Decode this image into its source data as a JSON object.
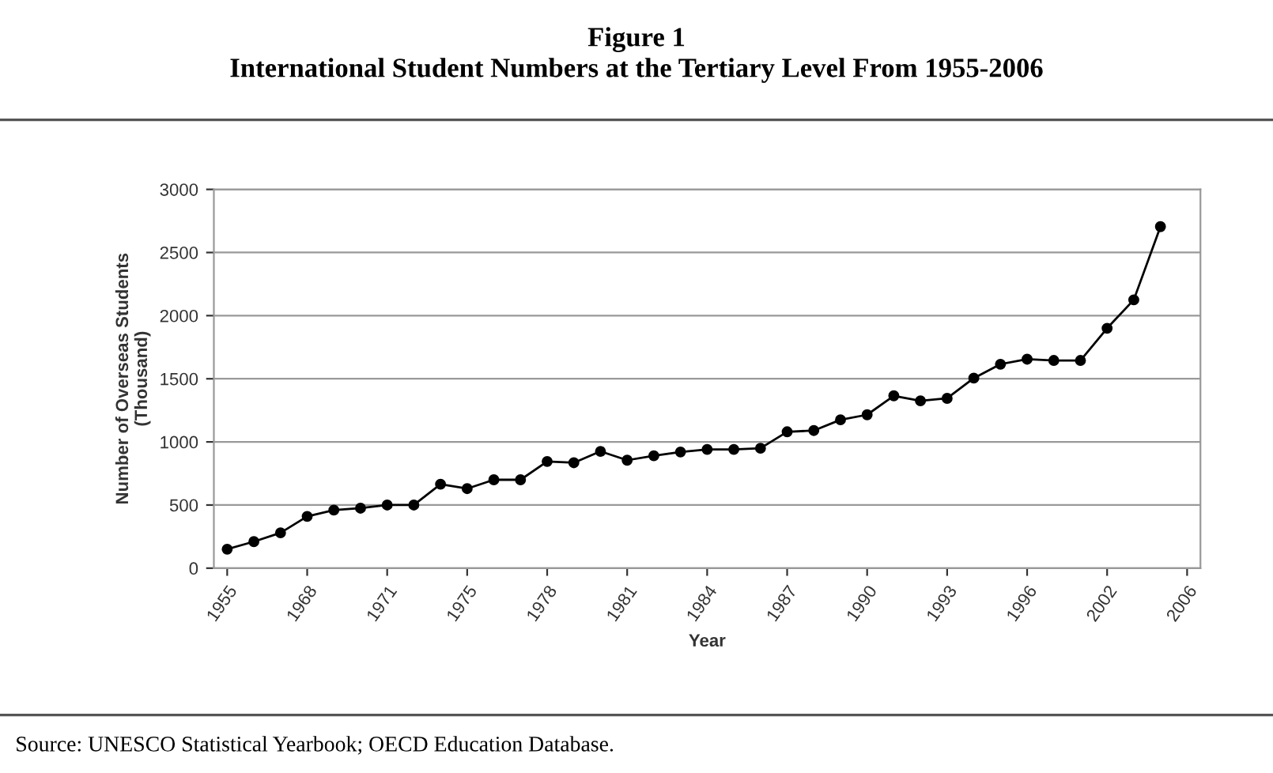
{
  "chart_data": {
    "type": "line",
    "title": "Figure 1\nInternational Student Numbers at the Tertiary Level From 1955-2006",
    "xlabel": "Year",
    "ylabel": "Number of Overseas Students\n(Thousand)",
    "categories": [
      "1955",
      null,
      null,
      "1968",
      null,
      null,
      "1971",
      null,
      null,
      "1975",
      null,
      null,
      "1978",
      null,
      null,
      "1981",
      null,
      null,
      "1984",
      null,
      null,
      "1987",
      null,
      null,
      "1990",
      null,
      null,
      "1993",
      null,
      null,
      "1996",
      null,
      null,
      "2002",
      null,
      null,
      "2006"
    ],
    "series": [
      {
        "color": "#000000",
        "values": [
          150,
          210,
          280,
          410,
          460,
          475,
          500,
          500,
          665,
          630,
          700,
          700,
          845,
          835,
          925,
          855,
          890,
          920,
          940,
          940,
          950,
          1080,
          1090,
          1175,
          1215,
          1365,
          1325,
          1345,
          1505,
          1615,
          1655,
          1645,
          1645,
          1900,
          2125,
          2705,
          null
        ]
      }
    ],
    "ylim": [
      0,
      3000
    ],
    "yticks": [
      0,
      500,
      1000,
      1500,
      2000,
      2500,
      3000
    ],
    "grid": "y",
    "marker": "circle",
    "line_style": "solid",
    "legend": false,
    "annotations": [
      "Source: UNESCO Statistical Yearbook; OECD Education Database."
    ]
  }
}
